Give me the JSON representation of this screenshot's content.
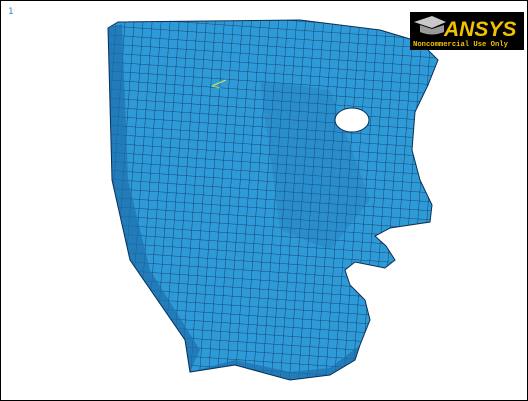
{
  "viewport": {
    "label": "1"
  },
  "logo": {
    "brand": "ANSYS",
    "notice": "Noncommercial Use Only"
  }
}
